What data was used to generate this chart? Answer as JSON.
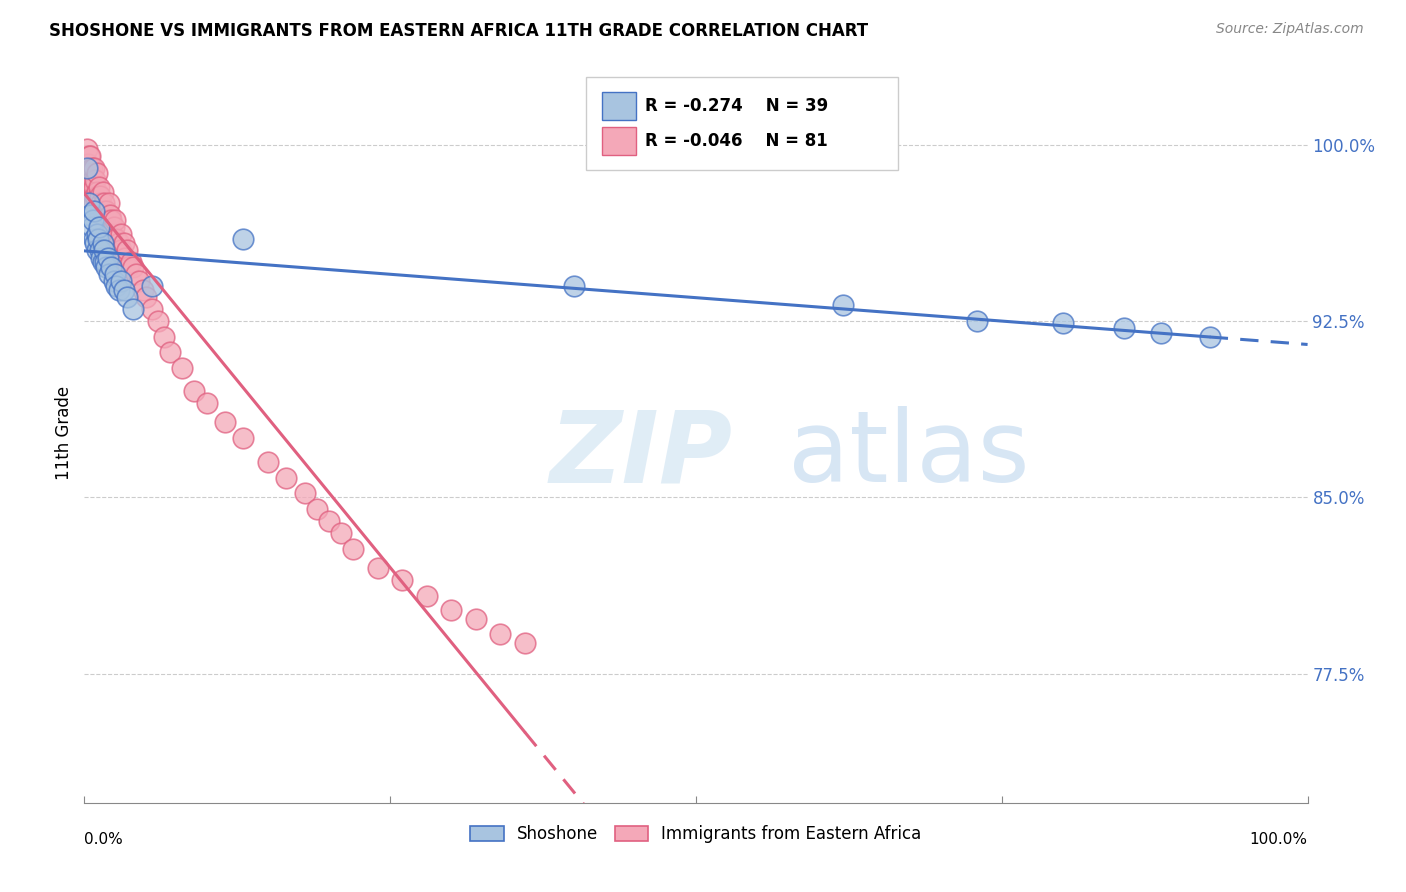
{
  "title": "SHOSHONE VS IMMIGRANTS FROM EASTERN AFRICA 11TH GRADE CORRELATION CHART",
  "source": "Source: ZipAtlas.com",
  "ylabel": "11th Grade",
  "ytick_vals": [
    0.775,
    0.85,
    0.925,
    1.0
  ],
  "ytick_labels": [
    "77.5%",
    "85.0%",
    "92.5%",
    "100.0%"
  ],
  "xlim": [
    0.0,
    1.0
  ],
  "ylim": [
    0.72,
    1.035
  ],
  "blue_R": "-0.274",
  "blue_N": "39",
  "pink_R": "-0.046",
  "pink_N": "81",
  "blue_color": "#a8c4e0",
  "pink_color": "#f4a8b8",
  "blue_edge_color": "#4472c4",
  "pink_edge_color": "#e06080",
  "blue_line_color": "#4472c4",
  "pink_line_color": "#e06080",
  "watermark_zip": "ZIP",
  "watermark_atlas": "atlas",
  "shoshone_x": [
    0.002,
    0.004,
    0.005,
    0.006,
    0.007,
    0.008,
    0.008,
    0.009,
    0.01,
    0.01,
    0.011,
    0.012,
    0.013,
    0.014,
    0.015,
    0.015,
    0.016,
    0.017,
    0.018,
    0.019,
    0.02,
    0.022,
    0.024,
    0.025,
    0.026,
    0.028,
    0.03,
    0.032,
    0.035,
    0.04,
    0.055,
    0.13,
    0.4,
    0.62,
    0.73,
    0.8,
    0.85,
    0.88,
    0.92
  ],
  "shoshone_y": [
    0.99,
    0.975,
    0.97,
    0.965,
    0.968,
    0.972,
    0.96,
    0.958,
    0.962,
    0.955,
    0.96,
    0.965,
    0.955,
    0.952,
    0.958,
    0.95,
    0.955,
    0.95,
    0.948,
    0.952,
    0.945,
    0.948,
    0.942,
    0.945,
    0.94,
    0.938,
    0.942,
    0.938,
    0.935,
    0.93,
    0.94,
    0.96,
    0.94,
    0.932,
    0.925,
    0.924,
    0.922,
    0.92,
    0.918
  ],
  "eastern_africa_x": [
    0.002,
    0.003,
    0.003,
    0.004,
    0.004,
    0.005,
    0.005,
    0.005,
    0.006,
    0.006,
    0.007,
    0.007,
    0.008,
    0.008,
    0.008,
    0.009,
    0.009,
    0.01,
    0.01,
    0.01,
    0.011,
    0.011,
    0.012,
    0.012,
    0.013,
    0.013,
    0.014,
    0.015,
    0.015,
    0.016,
    0.016,
    0.017,
    0.018,
    0.018,
    0.019,
    0.02,
    0.02,
    0.021,
    0.022,
    0.022,
    0.023,
    0.024,
    0.025,
    0.026,
    0.027,
    0.028,
    0.03,
    0.03,
    0.032,
    0.033,
    0.035,
    0.036,
    0.038,
    0.04,
    0.042,
    0.045,
    0.048,
    0.05,
    0.055,
    0.06,
    0.065,
    0.07,
    0.08,
    0.09,
    0.1,
    0.115,
    0.13,
    0.15,
    0.165,
    0.18,
    0.19,
    0.2,
    0.21,
    0.22,
    0.24,
    0.26,
    0.28,
    0.3,
    0.32,
    0.34,
    0.36
  ],
  "eastern_africa_y": [
    0.998,
    0.992,
    0.985,
    0.995,
    0.988,
    0.995,
    0.988,
    0.98,
    0.99,
    0.982,
    0.985,
    0.978,
    0.99,
    0.982,
    0.975,
    0.985,
    0.978,
    0.988,
    0.98,
    0.972,
    0.978,
    0.97,
    0.982,
    0.975,
    0.978,
    0.97,
    0.975,
    0.98,
    0.972,
    0.975,
    0.968,
    0.97,
    0.972,
    0.965,
    0.968,
    0.975,
    0.968,
    0.97,
    0.968,
    0.96,
    0.962,
    0.965,
    0.968,
    0.96,
    0.955,
    0.958,
    0.962,
    0.955,
    0.958,
    0.952,
    0.955,
    0.948,
    0.95,
    0.948,
    0.945,
    0.942,
    0.938,
    0.935,
    0.93,
    0.925,
    0.918,
    0.912,
    0.905,
    0.895,
    0.89,
    0.882,
    0.875,
    0.865,
    0.858,
    0.852,
    0.845,
    0.84,
    0.835,
    0.828,
    0.82,
    0.815,
    0.808,
    0.802,
    0.798,
    0.792,
    0.788
  ]
}
